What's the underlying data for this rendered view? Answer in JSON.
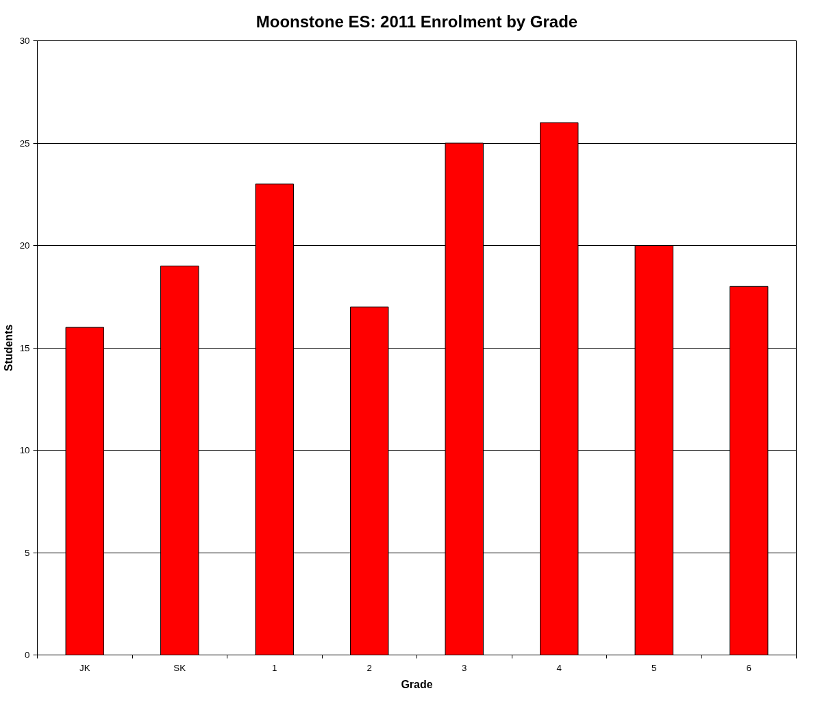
{
  "chart_data": {
    "type": "bar",
    "title": "Moonstone ES: 2011 Enrolment by Grade",
    "xlabel": "Grade",
    "ylabel": "Students",
    "categories": [
      "JK",
      "SK",
      "1",
      "2",
      "3",
      "4",
      "5",
      "6"
    ],
    "values": [
      16,
      19,
      23,
      17,
      25,
      26,
      20,
      18
    ],
    "color": "#ff0000",
    "ylim": [
      0,
      30
    ],
    "yticks": [
      0,
      5,
      10,
      15,
      20,
      25,
      30
    ],
    "grid": "y"
  }
}
